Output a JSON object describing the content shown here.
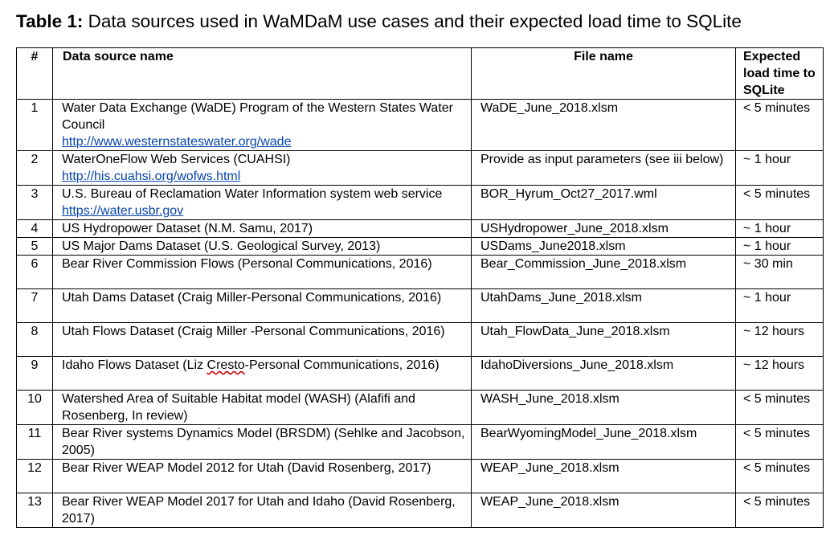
{
  "caption": {
    "label": "Table 1:",
    "text": "Data sources used in WaMDaM use cases and their expected load time to SQLite"
  },
  "table": {
    "headers": {
      "num": "#",
      "source": "Data source name",
      "file": "File name",
      "load": "Expected load time to SQLite"
    },
    "rows": [
      {
        "num": "1",
        "source": "Water Data Exchange (WaDE) Program of the Western States Water Council",
        "link": "http://www.westernstateswater.org/wade",
        "file": "WaDE_June_2018.xlsm",
        "load": "< 5 minutes"
      },
      {
        "num": "2",
        "source": "WaterOneFlow Web Services (CUAHSI)",
        "link": "http://his.cuahsi.org/wofws.html",
        "file": "Provide as input parameters  (see iii below)",
        "load": "~ 1 hour"
      },
      {
        "num": "3",
        "source": "U.S. Bureau of Reclamation Water Information system web service",
        "link": "https://water.usbr.gov",
        "file": "BOR_Hyrum_Oct27_2017.wml",
        "load": "< 5 minutes"
      },
      {
        "num": "4",
        "source": "US Hydropower Dataset (N.M. Samu, 2017)",
        "file": "USHydropower_June_2018.xlsm",
        "load": "~ 1 hour"
      },
      {
        "num": "5",
        "source": "US Major Dams Dataset (U.S. Geological Survey, 2013)",
        "file": "USDams_June2018.xlsm",
        "load": "~ 1 hour"
      },
      {
        "num": "6",
        "source": "Bear River Commission Flows (Personal Communications, 2016)",
        "file": "Bear_Commission_June_2018.xlsm",
        "load": "~ 30 min"
      },
      {
        "num": "7",
        "source": "Utah Dams Dataset (Craig Miller-Personal Communications, 2016)",
        "file": "UtahDams_June_2018.xlsm",
        "load": "~ 1 hour"
      },
      {
        "num": "8",
        "source": "Utah Flows Dataset (Craig Miller -Personal Communications, 2016)",
        "file": "Utah_FlowData_June_2018.xlsm",
        "load": "~ 12 hours"
      },
      {
        "num": "9",
        "source_pre": "Idaho Flows Dataset (Liz ",
        "source_squig": "Cresto",
        "source_post": "-Personal Communications, 2016)",
        "file": "IdahoDiversions_June_2018.xlsm",
        "load": "~ 12 hours"
      },
      {
        "num": "10",
        "source": "Watershed Area of Suitable Habitat model (WASH) (Alafifi and Rosenberg, In review)",
        "file": "WASH_June_2018.xlsm",
        "load": "< 5 minutes"
      },
      {
        "num": "11",
        "source": "Bear River systems Dynamics Model (BRSDM) (Sehlke and Jacobson, 2005)",
        "file": "BearWyomingModel_June_2018.xlsm",
        "load": "< 5 minutes"
      },
      {
        "num": "12",
        "source": "Bear River WEAP Model 2012 for Utah (David Rosenberg, 2017)",
        "file": "WEAP_June_2018.xlsm",
        "load": "< 5 minutes"
      },
      {
        "num": "13",
        "source": "Bear River WEAP Model 2017 for Utah and Idaho (David Rosenberg, 2017)",
        "file": "WEAP_June_2018.xlsm",
        "load": "< 5 minutes"
      }
    ]
  }
}
